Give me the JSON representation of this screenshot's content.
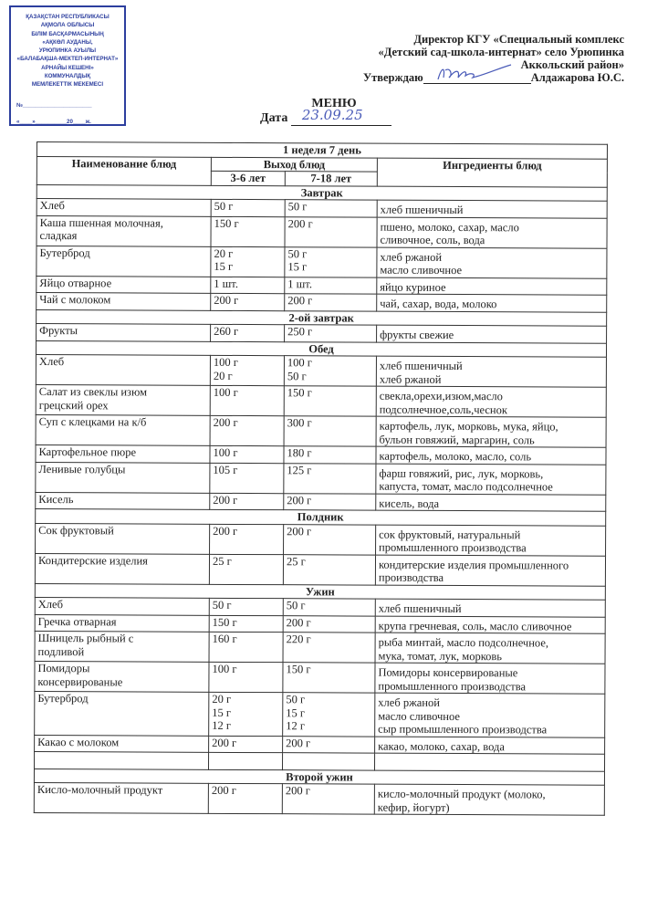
{
  "stamp": {
    "lines": [
      "ҚАЗАҚСТАН РЕСПУБЛИКАСЫ",
      "АҚМОЛА ОБЛЫСЫ",
      "БІЛІМ БАСҚАРМАСЫНЫҢ",
      "«АҚКӨЛ АУДАНЫ,",
      "УРЮПИНКА АУЫЛЫ",
      "«БАЛАБАҚША-МЕКТЕП-ИНТЕРНАТ»",
      "АРНАЙЫ КЕШЕНІ»",
      "КОММУНАЛДЫҚ",
      "МЕМЛЕКЕТТІК МЕКЕМЕСІ"
    ],
    "number_line": "№______________________",
    "date_line": "«____»__________20____ж.",
    "color": "#2c3e9e"
  },
  "approval": {
    "line1": "Директор КГУ «Специальный комплекс",
    "line2": "«Детский сад-школа-интернат» село Урюпинка",
    "line3": "Аккольский район»",
    "approve_label": "Утверждаю",
    "signer": "Алдажарова Ю.С.",
    "signature": "Ю.рез"
  },
  "title": "МЕНЮ",
  "date_label": "Дата",
  "date_value": "23.09.25",
  "table": {
    "week_day": "1 неделя  7 день",
    "col_name": "Наименование блюд",
    "col_output": "Выход блюд",
    "col_age1": "3-6 лет",
    "col_age2": "7-18 лет",
    "col_ingredients": "Ингредиенты блюд",
    "sections": [
      {
        "title": "Завтрак",
        "rows": [
          {
            "name": "Хлеб",
            "a": "50 г",
            "b": "50 г",
            "ing": "хлеб пшеничный"
          },
          {
            "name": "Каша пшенная молочная,\nсладкая",
            "a": "150 г",
            "b": "200 г",
            "ing": "пшено, молоко, сахар, масло\nсливочное, соль, вода"
          },
          {
            "name": "Бутерброд",
            "a": "20 г\n15 г",
            "b": "50 г\n15 г",
            "ing": "хлеб ржаной\nмасло сливочное"
          },
          {
            "name": "Яйцо отварное",
            "a": "1 шт.",
            "b": "1 шт.",
            "ing": "яйцо куриное"
          },
          {
            "name": "Чай с молоком",
            "a": "200 г",
            "b": "200 г",
            "ing": "чай, сахар, вода, молоко"
          }
        ]
      },
      {
        "title": "2-ой завтрак",
        "rows": [
          {
            "name": "Фрукты",
            "a": "260 г",
            "b": "250 г",
            "ing": "фрукты свежие"
          }
        ]
      },
      {
        "title": "Обед",
        "rows": [
          {
            "name": "Хлеб",
            "a": "100 г\n20 г",
            "b": "100 г\n50 г",
            "ing": "хлеб пшеничный\nхлеб ржаной"
          },
          {
            "name": "Салат из свеклы изюм\nгрецский орех",
            "a": "100 г",
            "b": "150 г",
            "ing": "свекла,орехи,изюм,масло\nподсолнечное,соль,чеснок"
          },
          {
            "name": "Суп с клецками на к/б",
            "a": "200 г",
            "b": "300 г",
            "ing": "картофель, лук, морковь, мука, яйцо,\nбульон говяжий, маргарин, соль\n"
          },
          {
            "name": "Картофельное пюре",
            "a": "100 г",
            "b": "180 г",
            "ing": "картофель, молоко, масло, соль"
          },
          {
            "name": "Ленивые голубцы",
            "a": "105 г",
            "b": "125 г",
            "ing": "фарш говяжий, рис, лук, морковь,\nкапуста, томат, масло подсолнечное"
          },
          {
            "name": "Кисель",
            "a": "200 г",
            "b": "200 г",
            "ing": "кисель, вода"
          }
        ]
      },
      {
        "title": "Полдник",
        "rows": [
          {
            "name": "Сок фруктовый",
            "a": "200 г",
            "b": "200 г",
            "ing": "сок фруктовый, натуральный\nпромышленного производства"
          },
          {
            "name": "Кондитерские изделия",
            "a": "25 г",
            "b": "25 г",
            "ing": "кондитерские изделия промышленного\nпроизводства"
          }
        ]
      },
      {
        "title": "Ужин",
        "rows": [
          {
            "name": "Хлеб",
            "a": "50 г",
            "b": "50 г",
            "ing": "хлеб пшеничный"
          },
          {
            "name": "Гречка отварная",
            "a": "150 г",
            "b": "200 г",
            "ing": "крупа гречневая, соль, масло сливочное"
          },
          {
            "name": "Шницель рыбный с\nподливой",
            "a": "160 г",
            "b": "220 г",
            "ing": "рыба минтай, масло подсолнечное,\nмука, томат, лук, морковь"
          },
          {
            "name": "Помидоры\nконсервированые",
            "a": "100 г",
            "b": "150 г",
            "ing": "Помидоры консервированые\nпромышленного производства"
          },
          {
            "name": "Бутерброд",
            "a": "20 г\n15 г\n12 г",
            "b": "50 г\n15 г\n12 г",
            "ing": "хлеб ржаной\nмасло сливочное\nсыр промышленного производства"
          },
          {
            "name": "Какао с молоком",
            "a": "200 г",
            "b": "200 г",
            "ing": "какао, молоко, сахар, вода"
          },
          {
            "name": "",
            "a": "",
            "b": "",
            "ing": ""
          }
        ]
      },
      {
        "title": "Второй ужин",
        "rows": [
          {
            "name": "Кисло-молочный продукт",
            "a": "200 г",
            "b": "200 г",
            "ing": "кисло-молочный продукт (молоко,\nкефир, йогурт)"
          }
        ]
      }
    ]
  }
}
